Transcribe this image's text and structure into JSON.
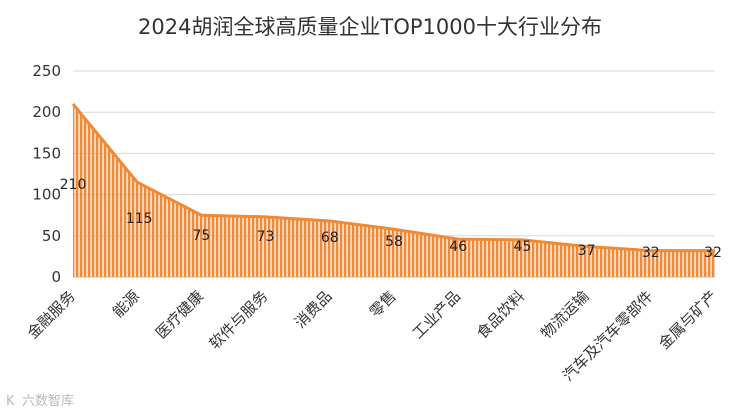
{
  "chart_data": {
    "type": "area",
    "title": "2024胡润全球高质量企业TOP1000十大行业分布",
    "categories": [
      "金融服务",
      "能源",
      "医疗健康",
      "软件与服务",
      "消费品",
      "零售",
      "工业产品",
      "食品饮料",
      "物流运输",
      "汽车及汽车零部件",
      "金属与矿产"
    ],
    "series": [
      {
        "values": [
          210,
          115,
          75,
          73,
          68,
          58,
          46,
          45,
          37,
          32,
          32
        ]
      }
    ],
    "data_labels": [
      "210",
      "115",
      "75",
      "73",
      "68",
      "58",
      "46",
      "45",
      "37",
      "32",
      "32"
    ],
    "yticks": [
      "0",
      "50",
      "100",
      "150",
      "200",
      "250"
    ],
    "ylim": [
      0,
      250
    ],
    "grid": true,
    "colors": {
      "line": "#f08a36",
      "fill": "#f5a567"
    }
  },
  "watermark": "六数智库"
}
